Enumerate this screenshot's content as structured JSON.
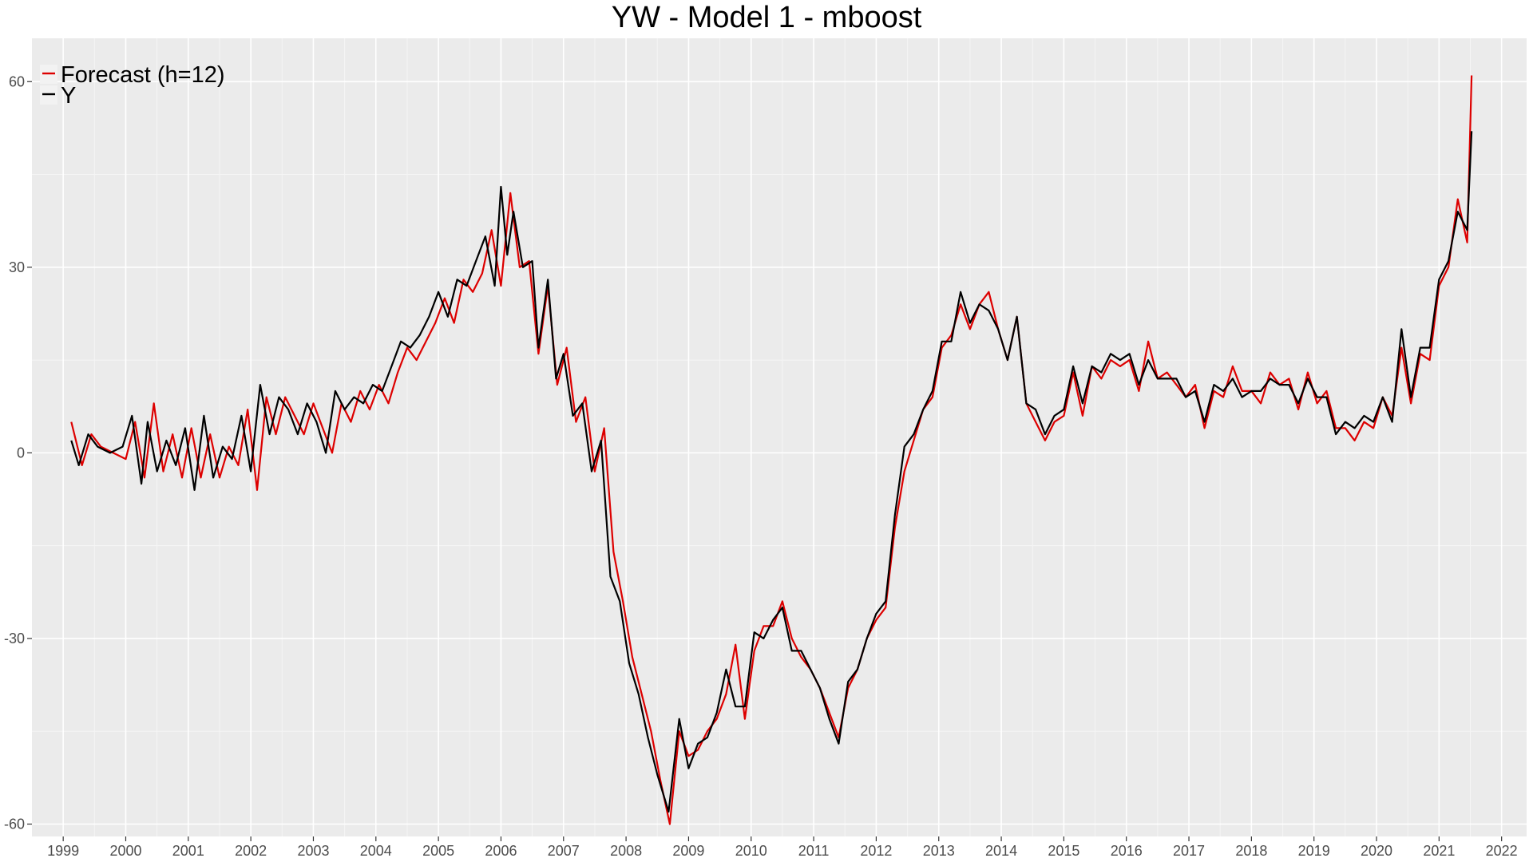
{
  "chart_data": {
    "type": "line",
    "title": "YW - Model 1 - mboost",
    "xlabel": "",
    "ylabel": "",
    "xlim": [
      1998.5,
      2022.4
    ],
    "ylim": [
      -62,
      67
    ],
    "x_ticks": [
      1999,
      2000,
      2001,
      2002,
      2003,
      2004,
      2005,
      2006,
      2007,
      2008,
      2009,
      2010,
      2011,
      2012,
      2013,
      2014,
      2015,
      2016,
      2017,
      2018,
      2019,
      2020,
      2021,
      2022
    ],
    "y_ticks": [
      60,
      30,
      0,
      -30,
      -60
    ],
    "grid": true,
    "legend_position": "top-left",
    "series": [
      {
        "name": "Forecast (h=12)",
        "color": "#dd0000",
        "points": [
          [
            1999.13,
            5
          ],
          [
            1999.3,
            -2
          ],
          [
            1999.45,
            3
          ],
          [
            1999.6,
            1
          ],
          [
            1999.8,
            0
          ],
          [
            2000.0,
            -1
          ],
          [
            2000.15,
            5
          ],
          [
            2000.3,
            -4
          ],
          [
            2000.45,
            8
          ],
          [
            2000.6,
            -3
          ],
          [
            2000.75,
            3
          ],
          [
            2000.9,
            -4
          ],
          [
            2001.05,
            4
          ],
          [
            2001.2,
            -4
          ],
          [
            2001.35,
            3
          ],
          [
            2001.5,
            -4
          ],
          [
            2001.65,
            1
          ],
          [
            2001.8,
            -2
          ],
          [
            2001.95,
            7
          ],
          [
            2002.1,
            -6
          ],
          [
            2002.25,
            9
          ],
          [
            2002.4,
            3
          ],
          [
            2002.55,
            9
          ],
          [
            2002.7,
            6
          ],
          [
            2002.85,
            3
          ],
          [
            2003.0,
            8
          ],
          [
            2003.15,
            4
          ],
          [
            2003.3,
            0
          ],
          [
            2003.45,
            8
          ],
          [
            2003.6,
            5
          ],
          [
            2003.75,
            10
          ],
          [
            2003.9,
            7
          ],
          [
            2004.05,
            11
          ],
          [
            2004.2,
            8
          ],
          [
            2004.35,
            13
          ],
          [
            2004.5,
            17
          ],
          [
            2004.65,
            15
          ],
          [
            2004.8,
            18
          ],
          [
            2004.95,
            21
          ],
          [
            2005.1,
            25
          ],
          [
            2005.25,
            21
          ],
          [
            2005.4,
            28
          ],
          [
            2005.55,
            26
          ],
          [
            2005.7,
            29
          ],
          [
            2005.85,
            36
          ],
          [
            2006.0,
            27
          ],
          [
            2006.15,
            42
          ],
          [
            2006.3,
            30
          ],
          [
            2006.45,
            31
          ],
          [
            2006.6,
            16
          ],
          [
            2006.75,
            27
          ],
          [
            2006.9,
            11
          ],
          [
            2007.05,
            17
          ],
          [
            2007.2,
            5
          ],
          [
            2007.35,
            9
          ],
          [
            2007.5,
            -3
          ],
          [
            2007.65,
            4
          ],
          [
            2007.8,
            -16
          ],
          [
            2007.95,
            -24
          ],
          [
            2008.1,
            -33
          ],
          [
            2008.25,
            -39
          ],
          [
            2008.4,
            -45
          ],
          [
            2008.55,
            -53
          ],
          [
            2008.7,
            -60
          ],
          [
            2008.85,
            -45
          ],
          [
            2009.0,
            -49
          ],
          [
            2009.15,
            -48
          ],
          [
            2009.3,
            -45
          ],
          [
            2009.45,
            -43
          ],
          [
            2009.6,
            -39
          ],
          [
            2009.75,
            -31
          ],
          [
            2009.9,
            -43
          ],
          [
            2010.05,
            -32
          ],
          [
            2010.2,
            -28
          ],
          [
            2010.35,
            -28
          ],
          [
            2010.5,
            -24
          ],
          [
            2010.65,
            -30
          ],
          [
            2010.8,
            -33
          ],
          [
            2010.95,
            -35
          ],
          [
            2011.1,
            -38
          ],
          [
            2011.25,
            -42
          ],
          [
            2011.4,
            -46
          ],
          [
            2011.55,
            -38
          ],
          [
            2011.7,
            -35
          ],
          [
            2011.85,
            -30
          ],
          [
            2012.0,
            -27
          ],
          [
            2012.15,
            -25
          ],
          [
            2012.3,
            -12
          ],
          [
            2012.45,
            -3
          ],
          [
            2012.6,
            2
          ],
          [
            2012.75,
            7
          ],
          [
            2012.9,
            9
          ],
          [
            2013.05,
            17
          ],
          [
            2013.2,
            19
          ],
          [
            2013.35,
            24
          ],
          [
            2013.5,
            20
          ],
          [
            2013.65,
            24
          ],
          [
            2013.8,
            26
          ],
          [
            2013.95,
            20
          ],
          [
            2014.1,
            15
          ],
          [
            2014.25,
            22
          ],
          [
            2014.4,
            8
          ],
          [
            2014.55,
            5
          ],
          [
            2014.7,
            2
          ],
          [
            2014.85,
            5
          ],
          [
            2015.0,
            6
          ],
          [
            2015.15,
            13
          ],
          [
            2015.3,
            6
          ],
          [
            2015.45,
            14
          ],
          [
            2015.6,
            12
          ],
          [
            2015.75,
            15
          ],
          [
            2015.9,
            14
          ],
          [
            2016.05,
            15
          ],
          [
            2016.2,
            10
          ],
          [
            2016.35,
            18
          ],
          [
            2016.5,
            12
          ],
          [
            2016.65,
            13
          ],
          [
            2016.8,
            11
          ],
          [
            2016.95,
            9
          ],
          [
            2017.1,
            11
          ],
          [
            2017.25,
            4
          ],
          [
            2017.4,
            10
          ],
          [
            2017.55,
            9
          ],
          [
            2017.7,
            14
          ],
          [
            2017.85,
            10
          ],
          [
            2018.0,
            10
          ],
          [
            2018.15,
            8
          ],
          [
            2018.3,
            13
          ],
          [
            2018.45,
            11
          ],
          [
            2018.6,
            12
          ],
          [
            2018.75,
            7
          ],
          [
            2018.9,
            13
          ],
          [
            2019.05,
            8
          ],
          [
            2019.2,
            10
          ],
          [
            2019.35,
            4
          ],
          [
            2019.5,
            4
          ],
          [
            2019.65,
            2
          ],
          [
            2019.8,
            5
          ],
          [
            2019.95,
            4
          ],
          [
            2020.1,
            9
          ],
          [
            2020.25,
            6
          ],
          [
            2020.4,
            17
          ],
          [
            2020.55,
            8
          ],
          [
            2020.7,
            16
          ],
          [
            2020.85,
            15
          ],
          [
            2021.0,
            27
          ],
          [
            2021.15,
            30
          ],
          [
            2021.3,
            41
          ],
          [
            2021.45,
            34
          ],
          [
            2021.52,
            61
          ]
        ]
      },
      {
        "name": "Y",
        "color": "#000000",
        "points": [
          [
            1999.13,
            2
          ],
          [
            1999.25,
            -2
          ],
          [
            1999.4,
            3
          ],
          [
            1999.55,
            1
          ],
          [
            1999.75,
            0
          ],
          [
            1999.95,
            1
          ],
          [
            2000.1,
            6
          ],
          [
            2000.25,
            -5
          ],
          [
            2000.35,
            5
          ],
          [
            2000.5,
            -3
          ],
          [
            2000.65,
            2
          ],
          [
            2000.8,
            -2
          ],
          [
            2000.95,
            4
          ],
          [
            2001.1,
            -6
          ],
          [
            2001.25,
            6
          ],
          [
            2001.4,
            -4
          ],
          [
            2001.55,
            1
          ],
          [
            2001.7,
            -1
          ],
          [
            2001.85,
            6
          ],
          [
            2002.0,
            -3
          ],
          [
            2002.15,
            11
          ],
          [
            2002.3,
            3
          ],
          [
            2002.45,
            9
          ],
          [
            2002.6,
            7
          ],
          [
            2002.75,
            3
          ],
          [
            2002.9,
            8
          ],
          [
            2003.05,
            5
          ],
          [
            2003.2,
            0
          ],
          [
            2003.35,
            10
          ],
          [
            2003.5,
            7
          ],
          [
            2003.65,
            9
          ],
          [
            2003.8,
            8
          ],
          [
            2003.95,
            11
          ],
          [
            2004.1,
            10
          ],
          [
            2004.25,
            14
          ],
          [
            2004.4,
            18
          ],
          [
            2004.55,
            17
          ],
          [
            2004.7,
            19
          ],
          [
            2004.85,
            22
          ],
          [
            2005.0,
            26
          ],
          [
            2005.15,
            22
          ],
          [
            2005.3,
            28
          ],
          [
            2005.45,
            27
          ],
          [
            2005.6,
            31
          ],
          [
            2005.75,
            35
          ],
          [
            2005.9,
            27
          ],
          [
            2006.0,
            43
          ],
          [
            2006.1,
            32
          ],
          [
            2006.2,
            39
          ],
          [
            2006.35,
            30
          ],
          [
            2006.5,
            31
          ],
          [
            2006.6,
            17
          ],
          [
            2006.75,
            28
          ],
          [
            2006.88,
            12
          ],
          [
            2007.0,
            16
          ],
          [
            2007.15,
            6
          ],
          [
            2007.3,
            8
          ],
          [
            2007.45,
            -3
          ],
          [
            2007.6,
            2
          ],
          [
            2007.75,
            -20
          ],
          [
            2007.9,
            -24
          ],
          [
            2008.05,
            -34
          ],
          [
            2008.2,
            -39
          ],
          [
            2008.35,
            -46
          ],
          [
            2008.5,
            -52
          ],
          [
            2008.68,
            -58
          ],
          [
            2008.85,
            -43
          ],
          [
            2009.0,
            -51
          ],
          [
            2009.15,
            -47
          ],
          [
            2009.3,
            -46
          ],
          [
            2009.45,
            -42
          ],
          [
            2009.6,
            -35
          ],
          [
            2009.75,
            -41
          ],
          [
            2009.9,
            -41
          ],
          [
            2010.05,
            -29
          ],
          [
            2010.2,
            -30
          ],
          [
            2010.35,
            -27
          ],
          [
            2010.5,
            -25
          ],
          [
            2010.65,
            -32
          ],
          [
            2010.8,
            -32
          ],
          [
            2010.95,
            -35
          ],
          [
            2011.1,
            -38
          ],
          [
            2011.25,
            -43
          ],
          [
            2011.4,
            -47
          ],
          [
            2011.55,
            -37
          ],
          [
            2011.7,
            -35
          ],
          [
            2011.85,
            -30
          ],
          [
            2012.0,
            -26
          ],
          [
            2012.15,
            -24
          ],
          [
            2012.3,
            -10
          ],
          [
            2012.45,
            1
          ],
          [
            2012.6,
            3
          ],
          [
            2012.75,
            7
          ],
          [
            2012.9,
            10
          ],
          [
            2013.05,
            18
          ],
          [
            2013.2,
            18
          ],
          [
            2013.35,
            26
          ],
          [
            2013.5,
            21
          ],
          [
            2013.65,
            24
          ],
          [
            2013.8,
            23
          ],
          [
            2013.95,
            20
          ],
          [
            2014.1,
            15
          ],
          [
            2014.25,
            22
          ],
          [
            2014.4,
            8
          ],
          [
            2014.55,
            7
          ],
          [
            2014.7,
            3
          ],
          [
            2014.85,
            6
          ],
          [
            2015.0,
            7
          ],
          [
            2015.15,
            14
          ],
          [
            2015.3,
            8
          ],
          [
            2015.45,
            14
          ],
          [
            2015.6,
            13
          ],
          [
            2015.75,
            16
          ],
          [
            2015.9,
            15
          ],
          [
            2016.05,
            16
          ],
          [
            2016.2,
            11
          ],
          [
            2016.35,
            15
          ],
          [
            2016.5,
            12
          ],
          [
            2016.65,
            12
          ],
          [
            2016.8,
            12
          ],
          [
            2016.95,
            9
          ],
          [
            2017.1,
            10
          ],
          [
            2017.25,
            5
          ],
          [
            2017.4,
            11
          ],
          [
            2017.55,
            10
          ],
          [
            2017.7,
            12
          ],
          [
            2017.85,
            9
          ],
          [
            2018.0,
            10
          ],
          [
            2018.15,
            10
          ],
          [
            2018.3,
            12
          ],
          [
            2018.45,
            11
          ],
          [
            2018.6,
            11
          ],
          [
            2018.75,
            8
          ],
          [
            2018.9,
            12
          ],
          [
            2019.05,
            9
          ],
          [
            2019.2,
            9
          ],
          [
            2019.35,
            3
          ],
          [
            2019.5,
            5
          ],
          [
            2019.65,
            4
          ],
          [
            2019.8,
            6
          ],
          [
            2019.95,
            5
          ],
          [
            2020.1,
            9
          ],
          [
            2020.25,
            5
          ],
          [
            2020.4,
            20
          ],
          [
            2020.55,
            9
          ],
          [
            2020.7,
            17
          ],
          [
            2020.85,
            17
          ],
          [
            2021.0,
            28
          ],
          [
            2021.15,
            31
          ],
          [
            2021.3,
            39
          ],
          [
            2021.45,
            36
          ],
          [
            2021.52,
            52
          ]
        ]
      }
    ]
  }
}
